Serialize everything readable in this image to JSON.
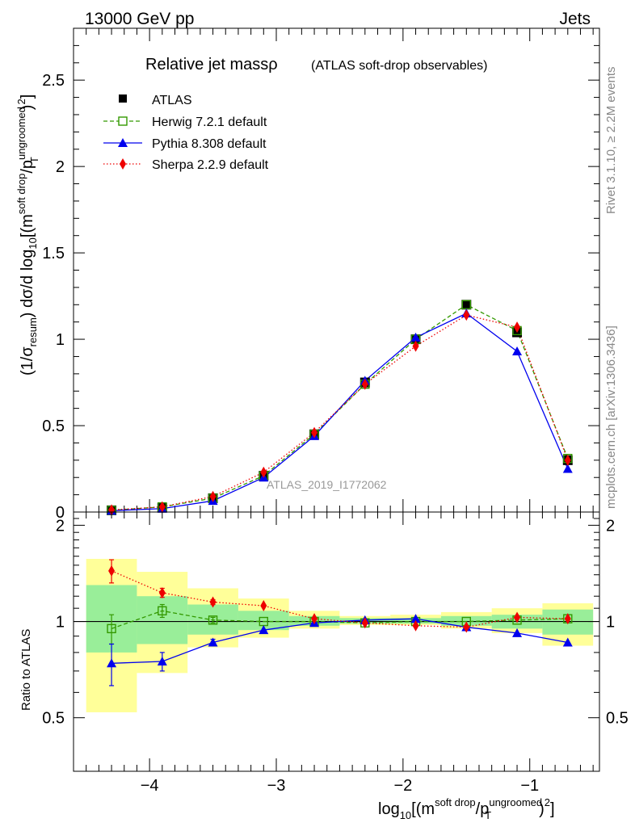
{
  "header": {
    "left": "13000 GeV pp",
    "right": "Jets"
  },
  "side_labels": {
    "rivet": "Rivet 3.1.10, ≥ 2.2M events",
    "mcplots": "mcplots.cern.ch [arXiv:1306.3436]"
  },
  "chart_data": [
    {
      "type": "scatter",
      "title": "Relative jet mass ρ",
      "title_main": "Relative jet mass",
      "title_rho": "ρ",
      "subtitle": "(ATLAS soft-drop observables)",
      "analysis_label": "ATLAS_2019_I1772062",
      "ylabel": "(1/σresum) dσ/d log10[(m^soft drop/pT^ungroomed)²]",
      "ylabel_parts": {
        "a": "(1/σ",
        "sub1": "resum",
        "b": ") dσ/d log",
        "sub2": "10",
        "c": "[(m",
        "sup1": "soft drop",
        "d": "/p",
        "sup2": "ungroomed",
        "sub3": "T",
        "e": ")",
        "sup3": "2",
        "f": "]"
      },
      "xlim": [
        -4.6,
        -0.45
      ],
      "ylim": [
        0,
        2.8
      ],
      "yticks": [
        "0",
        "0.5",
        "1",
        "1.5",
        "2",
        "2.5"
      ],
      "legend_position": "top-left",
      "x": [
        -4.3,
        -3.9,
        -3.5,
        -3.1,
        -2.7,
        -2.3,
        -1.9,
        -1.5,
        -1.1,
        -0.7
      ],
      "series": [
        {
          "name": "ATLAS",
          "values": [
            0.01,
            0.025,
            0.08,
            0.21,
            0.45,
            0.75,
            1.0,
            1.2,
            1.04,
            0.3
          ],
          "color": "#000000",
          "marker": "square-filled"
        },
        {
          "name": "Herwig 7.2.1 default",
          "values": [
            0.01,
            0.03,
            0.08,
            0.21,
            0.45,
            0.74,
            1.0,
            1.2,
            1.05,
            0.31
          ],
          "color": "#339900",
          "marker": "square-open",
          "line": "dashed"
        },
        {
          "name": "Pythia 8.308 default",
          "values": [
            0.008,
            0.02,
            0.065,
            0.2,
            0.44,
            0.76,
            1.01,
            1.15,
            0.93,
            0.25
          ],
          "color": "#0000ee",
          "marker": "triangle",
          "line": "solid"
        },
        {
          "name": "Sherpa 2.2.9 default",
          "values": [
            0.012,
            0.03,
            0.09,
            0.23,
            0.46,
            0.74,
            0.96,
            1.14,
            1.07,
            0.3
          ],
          "color": "#ee0000",
          "marker": "diamond",
          "line": "dotted"
        }
      ]
    },
    {
      "type": "scatter",
      "ylabel": "Ratio to ATLAS",
      "xlabel": "log10[(m^soft drop/pT^ungroomed)²]",
      "xlabel_parts": {
        "a": "log",
        "sub1": "10",
        "b": "[(m",
        "sup1": "soft drop",
        "c": "/p",
        "sup2": "ungroomed",
        "sub2": "T",
        "d": ")",
        "sup3": "2",
        "e": "]"
      },
      "xlim": [
        -4.6,
        -0.45
      ],
      "ylim": [
        0.34,
        2.2
      ],
      "xticks": [
        "−4",
        "−3",
        "−2",
        "−1"
      ],
      "yticks": [
        "0.5",
        "1",
        "2"
      ],
      "reference_line": 1,
      "bands": {
        "edges": [
          -4.5,
          -4.1,
          -3.7,
          -3.3,
          -2.9,
          -2.5,
          -2.1,
          -1.7,
          -1.3,
          -0.9,
          -0.5
        ],
        "yellow": [
          [
            0.52,
            1.57
          ],
          [
            0.69,
            1.43
          ],
          [
            0.83,
            1.27
          ],
          [
            0.89,
            1.18
          ],
          [
            0.95,
            1.08
          ],
          [
            0.975,
            1.04
          ],
          [
            0.975,
            1.05
          ],
          [
            0.95,
            1.07
          ],
          [
            0.92,
            1.1
          ],
          [
            0.84,
            1.14
          ]
        ],
        "green": [
          [
            0.8,
            1.3
          ],
          [
            0.85,
            1.2
          ],
          [
            0.91,
            1.13
          ],
          [
            0.94,
            1.08
          ],
          [
            0.97,
            1.04
          ],
          [
            0.985,
            1.025
          ],
          [
            0.985,
            1.025
          ],
          [
            0.97,
            1.04
          ],
          [
            0.95,
            1.05
          ],
          [
            0.91,
            1.09
          ]
        ]
      },
      "series": [
        {
          "name": "Herwig 7.2.1 default",
          "values": [
            0.95,
            1.08,
            1.01,
            1.0,
            1.0,
            0.99,
            1.0,
            1.0,
            1.01,
            1.02
          ],
          "errors": [
            0.1,
            0.05,
            0.02,
            0.0,
            0.0,
            0.0,
            0.0,
            0.0,
            0.0,
            0.0
          ],
          "color": "#339900"
        },
        {
          "name": "Pythia 8.308 default",
          "values": [
            0.74,
            0.75,
            0.86,
            0.94,
            0.99,
            1.01,
            1.02,
            0.96,
            0.92,
            0.86
          ],
          "errors": [
            0.11,
            0.05,
            0.02,
            0.0,
            0.0,
            0.0,
            0.0,
            0.0,
            0.0,
            0.0
          ],
          "color": "#0000ee"
        },
        {
          "name": "Sherpa 2.2.9 default",
          "values": [
            1.44,
            1.23,
            1.15,
            1.12,
            1.02,
            0.99,
            0.97,
            0.96,
            1.03,
            1.02
          ],
          "errors": [
            0.12,
            0.04,
            0.02,
            0.0,
            0.0,
            0.0,
            0.0,
            0.0,
            0.0,
            0.0
          ],
          "color": "#ee0000"
        }
      ]
    }
  ]
}
